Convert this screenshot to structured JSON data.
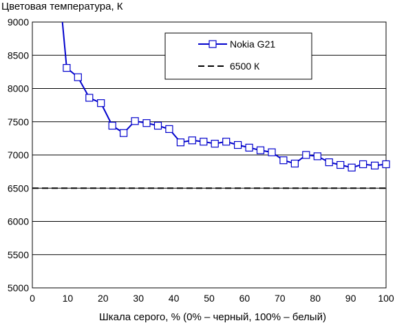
{
  "chart_data": {
    "type": "line",
    "title": "",
    "ylabel": "Цветовая температура, К",
    "xlabel": "Шкала серого, % (0% – черный, 100% – белый)",
    "xlim": [
      0,
      100
    ],
    "ylim": [
      5000,
      9000
    ],
    "x_ticks": [
      0,
      10,
      20,
      30,
      40,
      50,
      60,
      70,
      80,
      90,
      100
    ],
    "y_ticks": [
      5000,
      5500,
      6000,
      6500,
      7000,
      7500,
      8000,
      8500,
      9000
    ],
    "grid": "horizontal",
    "legend_position": "top-right",
    "colors": {
      "series": "#0000cc",
      "reference": "#000000",
      "grid": "#000000"
    },
    "series": [
      {
        "name": "Nokia G21",
        "marker": "square",
        "points": [
          [
            8.5,
            9050
          ],
          [
            9.7,
            8310
          ],
          [
            12.9,
            8170
          ],
          [
            16.1,
            7860
          ],
          [
            19.4,
            7780
          ],
          [
            22.6,
            7440
          ],
          [
            25.8,
            7330
          ],
          [
            29.0,
            7510
          ],
          [
            32.3,
            7480
          ],
          [
            35.5,
            7440
          ],
          [
            38.7,
            7390
          ],
          [
            41.9,
            7190
          ],
          [
            45.2,
            7220
          ],
          [
            48.4,
            7200
          ],
          [
            51.6,
            7170
          ],
          [
            54.8,
            7200
          ],
          [
            58.1,
            7150
          ],
          [
            61.3,
            7110
          ],
          [
            64.5,
            7070
          ],
          [
            67.7,
            7040
          ],
          [
            71.0,
            6920
          ],
          [
            74.2,
            6870
          ],
          [
            77.4,
            7000
          ],
          [
            80.6,
            6980
          ],
          [
            83.9,
            6890
          ],
          [
            87.1,
            6850
          ],
          [
            90.3,
            6810
          ],
          [
            93.5,
            6860
          ],
          [
            96.8,
            6840
          ],
          [
            100.0,
            6860
          ]
        ]
      },
      {
        "name": "6500 К",
        "style": "dashed",
        "y": 6500
      }
    ]
  }
}
